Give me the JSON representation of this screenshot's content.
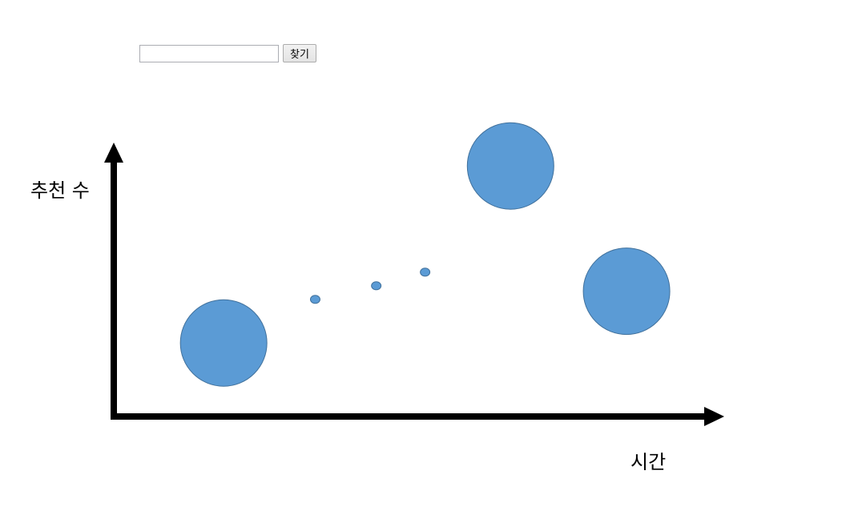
{
  "search": {
    "value": "",
    "placeholder": "",
    "button_label": "찾기"
  },
  "chart_data": {
    "type": "scatter",
    "title": "",
    "xlabel": "시간",
    "ylabel": "추천 수",
    "xlim": [
      0,
      100
    ],
    "ylim": [
      0,
      100
    ],
    "grid": false,
    "tick_labels": false,
    "color": "#5b9bd5",
    "edge_color": "#41719c",
    "points": [
      {
        "x": 18,
        "y": 27,
        "size": "large"
      },
      {
        "x": 33,
        "y": 43,
        "size": "small"
      },
      {
        "x": 43,
        "y": 48,
        "size": "small"
      },
      {
        "x": 51,
        "y": 53,
        "size": "small"
      },
      {
        "x": 65,
        "y": 92,
        "size": "large"
      },
      {
        "x": 84,
        "y": 46,
        "size": "large"
      }
    ]
  }
}
